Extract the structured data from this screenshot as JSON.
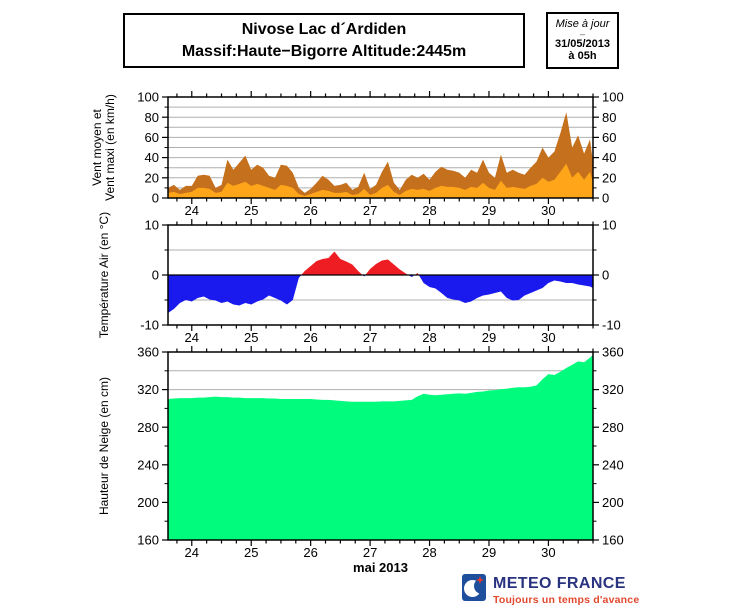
{
  "header": {
    "title_line1": "Nivose Lac d´Ardiden",
    "title_line2": "Massif:Haute−Bigorre Altitude:2445m"
  },
  "update_box": {
    "label": "Mise à jour",
    "separator": "–",
    "date": "31/05/2013",
    "time": "à 05h"
  },
  "footer": {
    "brand": "METEO FRANCE",
    "tagline": "Toujours un temps d'avance"
  },
  "chart_data": {
    "type": "composite",
    "x_axis": {
      "xlabel": "mai 2013",
      "xlim": [
        23.6,
        30.75
      ],
      "day_labels": [
        24,
        25,
        26,
        27,
        28,
        29,
        30
      ],
      "minor_tick_step": 0.25,
      "x": [
        23.6,
        23.7,
        23.8,
        23.9,
        24.0,
        24.1,
        24.2,
        24.3,
        24.4,
        24.5,
        24.6,
        24.7,
        24.8,
        24.9,
        25.0,
        25.1,
        25.2,
        25.3,
        25.4,
        25.5,
        25.6,
        25.7,
        25.8,
        25.9,
        26.0,
        26.1,
        26.2,
        26.3,
        26.4,
        26.5,
        26.6,
        26.7,
        26.8,
        26.9,
        27.0,
        27.1,
        27.2,
        27.3,
        27.4,
        27.5,
        27.6,
        27.7,
        27.8,
        27.9,
        28.0,
        28.1,
        28.2,
        28.3,
        28.4,
        28.5,
        28.6,
        28.7,
        28.8,
        28.9,
        29.0,
        29.1,
        29.2,
        29.3,
        29.4,
        29.5,
        29.6,
        29.7,
        29.8,
        29.9,
        30.0,
        30.1,
        30.2,
        30.3,
        30.4,
        30.5,
        30.6,
        30.7,
        30.75
      ]
    },
    "charts": [
      {
        "id": "wind",
        "type": "area",
        "ylabel_lines": [
          "Vent moyen et",
          "Vent maxi (en km/h)"
        ],
        "ylim": [
          0,
          100
        ],
        "yticks": [
          0,
          20,
          40,
          60,
          80,
          100
        ],
        "ygrid": [
          10,
          20,
          30,
          40,
          50,
          60,
          70,
          80,
          90
        ],
        "baseline": 0,
        "grid": true,
        "series": [
          {
            "name": "Vent maxi",
            "color": "#C4701C",
            "values": [
              10,
              13,
              8,
              12,
              12,
              22,
              23,
              22,
              10,
              13,
              38,
              28,
              35,
              42,
              28,
              33,
              30,
              22,
              20,
              33,
              32,
              25,
              10,
              5,
              9,
              15,
              22,
              18,
              12,
              13,
              15,
              8,
              11,
              25,
              9,
              13,
              26,
              36,
              15,
              8,
              18,
              23,
              20,
              24,
              18,
              26,
              31,
              28,
              27,
              25,
              20,
              28,
              25,
              38,
              25,
              20,
              43,
              25,
              28,
              25,
              23,
              30,
              36,
              50,
              40,
              46,
              64,
              85,
              50,
              62,
              44,
              58,
              35
            ]
          },
          {
            "name": "Vent moyen",
            "color": "#FFA519",
            "values": [
              5,
              6,
              4,
              5,
              6,
              10,
              10,
              9,
              5,
              6,
              15,
              12,
              14,
              16,
              12,
              14,
              12,
              10,
              8,
              13,
              12,
              10,
              4,
              2,
              4,
              6,
              8,
              7,
              5,
              5,
              6,
              3,
              4,
              9,
              3,
              5,
              10,
              13,
              6,
              3,
              7,
              9,
              8,
              9,
              7,
              10,
              12,
              11,
              11,
              10,
              8,
              11,
              10,
              15,
              10,
              8,
              17,
              10,
              11,
              10,
              9,
              12,
              14,
              20,
              16,
              18,
              26,
              34,
              20,
              26,
              18,
              26,
              15
            ]
          }
        ]
      },
      {
        "id": "temperature",
        "type": "area-diverging",
        "ylabel_lines": [
          "Température Air (en °C)"
        ],
        "ylim": [
          -10,
          10
        ],
        "yticks": [
          -10,
          0,
          10
        ],
        "ygrid": [
          -5,
          5
        ],
        "zero_line": true,
        "grid": true,
        "series": [
          {
            "name": "Température Air",
            "color_positive": "#EE1D23",
            "color_negative": "#1A1AEE",
            "values": [
              -7.6,
              -6.8,
              -5.6,
              -5.0,
              -5.3,
              -4.6,
              -4.3,
              -4.9,
              -5.1,
              -5.6,
              -5.3,
              -5.9,
              -6.1,
              -5.6,
              -5.9,
              -5.3,
              -4.9,
              -4.1,
              -4.6,
              -5.1,
              -5.9,
              -5.0,
              -0.6,
              0.8,
              1.8,
              2.8,
              3.2,
              3.4,
              4.7,
              3.2,
              2.7,
              2.1,
              0.8,
              -0.3,
              1.2,
              2.2,
              2.9,
              3.1,
              2.1,
              1.1,
              0.3,
              -0.4,
              0.4,
              -1.6,
              -2.4,
              -2.7,
              -3.6,
              -4.6,
              -4.9,
              -5.1,
              -5.6,
              -5.3,
              -4.6,
              -4.1,
              -3.9,
              -3.6,
              -3.3,
              -4.6,
              -5.1,
              -5.0,
              -4.1,
              -3.6,
              -3.1,
              -2.6,
              -1.6,
              -1.1,
              -1.3,
              -1.6,
              -1.6,
              -1.9,
              -2.1,
              -2.3,
              -2.6
            ]
          }
        ]
      },
      {
        "id": "snow",
        "type": "area",
        "ylabel_lines": [
          "Hauteur de Neige (en cm)"
        ],
        "ylim": [
          160,
          360
        ],
        "yticks": [
          160,
          200,
          240,
          280,
          320,
          360
        ],
        "ygrid": [
          180,
          200,
          220,
          240,
          260,
          280,
          300,
          320,
          340
        ],
        "baseline": 160,
        "grid": true,
        "series": [
          {
            "name": "Hauteur de Neige",
            "color": "#00FB7D",
            "values": [
              310,
              310.5,
              311,
              311,
              311,
              311.5,
              311.5,
              312,
              312.5,
              312,
              312,
              311.5,
              311.5,
              311,
              311,
              311,
              311,
              310.5,
              310.5,
              310,
              310,
              310,
              310,
              310,
              310,
              309.5,
              309,
              309,
              308.5,
              308,
              307.5,
              307,
              307,
              307,
              307,
              307,
              307.5,
              307.5,
              307.5,
              308,
              308.5,
              309,
              313,
              315.5,
              314.5,
              314,
              314.5,
              315,
              315.5,
              316,
              315.5,
              316.5,
              317.5,
              318,
              319,
              319.5,
              320.5,
              321,
              322,
              322.5,
              322.5,
              323,
              324.5,
              331,
              336.5,
              335.5,
              339,
              343,
              346.5,
              350,
              349,
              354,
              357
            ]
          }
        ]
      }
    ]
  }
}
